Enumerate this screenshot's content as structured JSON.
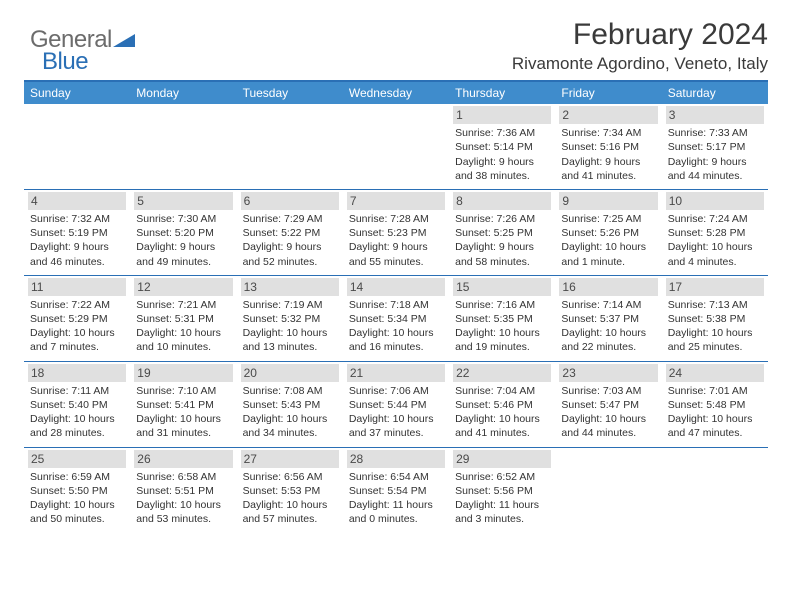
{
  "logo": {
    "general": "General",
    "blue": "Blue"
  },
  "header": {
    "title": "February 2024",
    "location": "Rivamonte Agordino, Veneto, Italy"
  },
  "colors": {
    "header_bg": "#3f8ccc",
    "rule": "#2a6fb5",
    "daynum_bg": "#e0e0e0",
    "text": "#333333",
    "logo_gray": "#6c6c6c",
    "logo_blue": "#2a6fb5"
  },
  "weekdays": [
    "Sunday",
    "Monday",
    "Tuesday",
    "Wednesday",
    "Thursday",
    "Friday",
    "Saturday"
  ],
  "weeks": [
    [
      {
        "n": "",
        "sr": "",
        "ss": "",
        "dl": ""
      },
      {
        "n": "",
        "sr": "",
        "ss": "",
        "dl": ""
      },
      {
        "n": "",
        "sr": "",
        "ss": "",
        "dl": ""
      },
      {
        "n": "",
        "sr": "",
        "ss": "",
        "dl": ""
      },
      {
        "n": "1",
        "sr": "Sunrise: 7:36 AM",
        "ss": "Sunset: 5:14 PM",
        "dl": "Daylight: 9 hours and 38 minutes."
      },
      {
        "n": "2",
        "sr": "Sunrise: 7:34 AM",
        "ss": "Sunset: 5:16 PM",
        "dl": "Daylight: 9 hours and 41 minutes."
      },
      {
        "n": "3",
        "sr": "Sunrise: 7:33 AM",
        "ss": "Sunset: 5:17 PM",
        "dl": "Daylight: 9 hours and 44 minutes."
      }
    ],
    [
      {
        "n": "4",
        "sr": "Sunrise: 7:32 AM",
        "ss": "Sunset: 5:19 PM",
        "dl": "Daylight: 9 hours and 46 minutes."
      },
      {
        "n": "5",
        "sr": "Sunrise: 7:30 AM",
        "ss": "Sunset: 5:20 PM",
        "dl": "Daylight: 9 hours and 49 minutes."
      },
      {
        "n": "6",
        "sr": "Sunrise: 7:29 AM",
        "ss": "Sunset: 5:22 PM",
        "dl": "Daylight: 9 hours and 52 minutes."
      },
      {
        "n": "7",
        "sr": "Sunrise: 7:28 AM",
        "ss": "Sunset: 5:23 PM",
        "dl": "Daylight: 9 hours and 55 minutes."
      },
      {
        "n": "8",
        "sr": "Sunrise: 7:26 AM",
        "ss": "Sunset: 5:25 PM",
        "dl": "Daylight: 9 hours and 58 minutes."
      },
      {
        "n": "9",
        "sr": "Sunrise: 7:25 AM",
        "ss": "Sunset: 5:26 PM",
        "dl": "Daylight: 10 hours and 1 minute."
      },
      {
        "n": "10",
        "sr": "Sunrise: 7:24 AM",
        "ss": "Sunset: 5:28 PM",
        "dl": "Daylight: 10 hours and 4 minutes."
      }
    ],
    [
      {
        "n": "11",
        "sr": "Sunrise: 7:22 AM",
        "ss": "Sunset: 5:29 PM",
        "dl": "Daylight: 10 hours and 7 minutes."
      },
      {
        "n": "12",
        "sr": "Sunrise: 7:21 AM",
        "ss": "Sunset: 5:31 PM",
        "dl": "Daylight: 10 hours and 10 minutes."
      },
      {
        "n": "13",
        "sr": "Sunrise: 7:19 AM",
        "ss": "Sunset: 5:32 PM",
        "dl": "Daylight: 10 hours and 13 minutes."
      },
      {
        "n": "14",
        "sr": "Sunrise: 7:18 AM",
        "ss": "Sunset: 5:34 PM",
        "dl": "Daylight: 10 hours and 16 minutes."
      },
      {
        "n": "15",
        "sr": "Sunrise: 7:16 AM",
        "ss": "Sunset: 5:35 PM",
        "dl": "Daylight: 10 hours and 19 minutes."
      },
      {
        "n": "16",
        "sr": "Sunrise: 7:14 AM",
        "ss": "Sunset: 5:37 PM",
        "dl": "Daylight: 10 hours and 22 minutes."
      },
      {
        "n": "17",
        "sr": "Sunrise: 7:13 AM",
        "ss": "Sunset: 5:38 PM",
        "dl": "Daylight: 10 hours and 25 minutes."
      }
    ],
    [
      {
        "n": "18",
        "sr": "Sunrise: 7:11 AM",
        "ss": "Sunset: 5:40 PM",
        "dl": "Daylight: 10 hours and 28 minutes."
      },
      {
        "n": "19",
        "sr": "Sunrise: 7:10 AM",
        "ss": "Sunset: 5:41 PM",
        "dl": "Daylight: 10 hours and 31 minutes."
      },
      {
        "n": "20",
        "sr": "Sunrise: 7:08 AM",
        "ss": "Sunset: 5:43 PM",
        "dl": "Daylight: 10 hours and 34 minutes."
      },
      {
        "n": "21",
        "sr": "Sunrise: 7:06 AM",
        "ss": "Sunset: 5:44 PM",
        "dl": "Daylight: 10 hours and 37 minutes."
      },
      {
        "n": "22",
        "sr": "Sunrise: 7:04 AM",
        "ss": "Sunset: 5:46 PM",
        "dl": "Daylight: 10 hours and 41 minutes."
      },
      {
        "n": "23",
        "sr": "Sunrise: 7:03 AM",
        "ss": "Sunset: 5:47 PM",
        "dl": "Daylight: 10 hours and 44 minutes."
      },
      {
        "n": "24",
        "sr": "Sunrise: 7:01 AM",
        "ss": "Sunset: 5:48 PM",
        "dl": "Daylight: 10 hours and 47 minutes."
      }
    ],
    [
      {
        "n": "25",
        "sr": "Sunrise: 6:59 AM",
        "ss": "Sunset: 5:50 PM",
        "dl": "Daylight: 10 hours and 50 minutes."
      },
      {
        "n": "26",
        "sr": "Sunrise: 6:58 AM",
        "ss": "Sunset: 5:51 PM",
        "dl": "Daylight: 10 hours and 53 minutes."
      },
      {
        "n": "27",
        "sr": "Sunrise: 6:56 AM",
        "ss": "Sunset: 5:53 PM",
        "dl": "Daylight: 10 hours and 57 minutes."
      },
      {
        "n": "28",
        "sr": "Sunrise: 6:54 AM",
        "ss": "Sunset: 5:54 PM",
        "dl": "Daylight: 11 hours and 0 minutes."
      },
      {
        "n": "29",
        "sr": "Sunrise: 6:52 AM",
        "ss": "Sunset: 5:56 PM",
        "dl": "Daylight: 11 hours and 3 minutes."
      },
      {
        "n": "",
        "sr": "",
        "ss": "",
        "dl": ""
      },
      {
        "n": "",
        "sr": "",
        "ss": "",
        "dl": ""
      }
    ]
  ]
}
